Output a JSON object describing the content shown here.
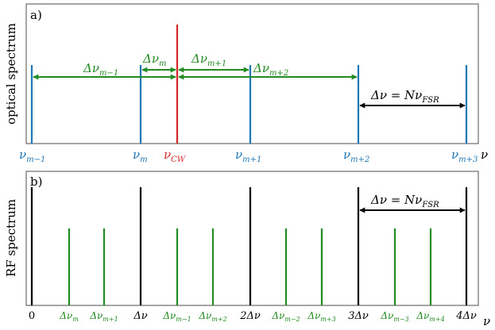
{
  "colors": {
    "blue": "#1f77b4",
    "red": "#d62728",
    "green": "#228b22",
    "black": "#000000",
    "frame": "#4d4d4d"
  },
  "panel_a": {
    "tag": "a)",
    "ylabel": "optical spectrum",
    "lines": [
      {
        "label_main": "ν",
        "label_sub": "m−1",
        "color": "blue"
      },
      {
        "label_main": "ν",
        "label_sub": "m",
        "color": "blue"
      },
      {
        "label_main": "ν",
        "label_sub": "CW",
        "color": "red"
      },
      {
        "label_main": "ν",
        "label_sub": "m+1",
        "color": "blue"
      },
      {
        "label_main": "ν",
        "label_sub": "m+2",
        "color": "blue"
      },
      {
        "label_main": "ν",
        "label_sub": "m+3",
        "color": "blue"
      }
    ],
    "axis_symbol": "ν",
    "arrows": [
      {
        "label_main": "Δν",
        "label_sub": "m−1",
        "color": "green"
      },
      {
        "label_main": "Δν",
        "label_sub": "m",
        "color": "green"
      },
      {
        "label_main": "Δν",
        "label_sub": "m+1",
        "color": "green"
      },
      {
        "label_main": "Δν",
        "label_sub": "m+2",
        "color": "green"
      },
      {
        "label_main": "Δν = Nν",
        "label_sub": "FSR",
        "color": "black"
      }
    ]
  },
  "panel_b": {
    "tag": "b)",
    "ylabel": "RF spectrum",
    "axis_symbol": "ν",
    "ticks": [
      "0",
      "Δν",
      "2Δν",
      "3Δν",
      "4Δν"
    ],
    "green_labels": [
      {
        "main": "Δν",
        "sub": "m"
      },
      {
        "main": "Δν",
        "sub": "m+1"
      },
      {
        "main": "Δν",
        "sub": "m−1"
      },
      {
        "main": "Δν",
        "sub": "m+2"
      },
      {
        "main": "Δν",
        "sub": "m−2"
      },
      {
        "main": "Δν",
        "sub": "m+3"
      },
      {
        "main": "Δν",
        "sub": "m−3"
      },
      {
        "main": "Δν",
        "sub": "m+4"
      }
    ],
    "arrow": {
      "label_main": "Δν = Nν",
      "label_sub": "FSR"
    }
  }
}
